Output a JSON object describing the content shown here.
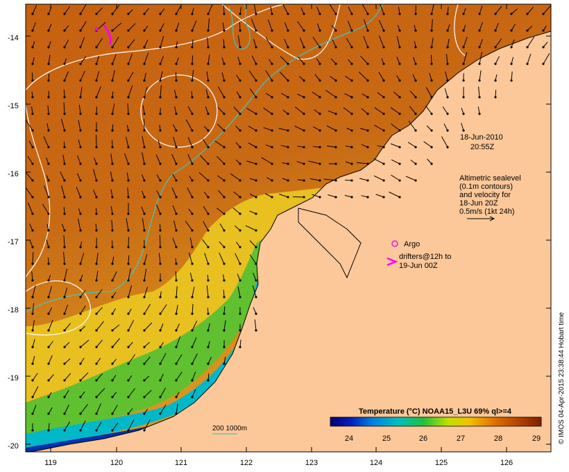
{
  "map": {
    "lat_labels": [
      "-14",
      "-15",
      "-16",
      "-17",
      "-18",
      "-19",
      "-20"
    ],
    "lon_labels": [
      "119",
      "120",
      "121",
      "122",
      "123",
      "124",
      "125",
      "126"
    ],
    "lat_range": [
      -20.1,
      -13.6
    ],
    "lon_range": [
      118.6,
      126.7
    ]
  },
  "annotations": {
    "date_line1": "18-Jun-2010",
    "date_line2": "20:55Z",
    "alt_lines": [
      "Altimetric sealevel",
      "(0.1m contours)",
      "and velocity for",
      "18-Jun 20Z",
      "0.5m/s (1kt 24h)"
    ],
    "argo": "Argo",
    "drifters_line1": "drifters@12h to",
    "drifters_line2": "19-Jun 00Z",
    "isobath": "200  1000m",
    "credit": "© IMOS 04-Apr-2015 23:38:44 Hobart time"
  },
  "colorbar": {
    "title": "Temperature (°C) NOAA15_L3U 69% ql>=4",
    "ticks": [
      "24",
      "25",
      "26",
      "27",
      "28",
      "29"
    ],
    "range": [
      23.5,
      29.2
    ],
    "colors": [
      "#000070",
      "#0020c0",
      "#0080e0",
      "#00c0c0",
      "#20c040",
      "#c0e000",
      "#f0c000",
      "#e07000",
      "#b04000",
      "#802000"
    ]
  },
  "colors": {
    "land": "#fcc899",
    "argo": "#e020e0",
    "drifter": "#ff00ff",
    "isobath": "#40c8c0",
    "sealevel_contour": "#ffffff"
  }
}
